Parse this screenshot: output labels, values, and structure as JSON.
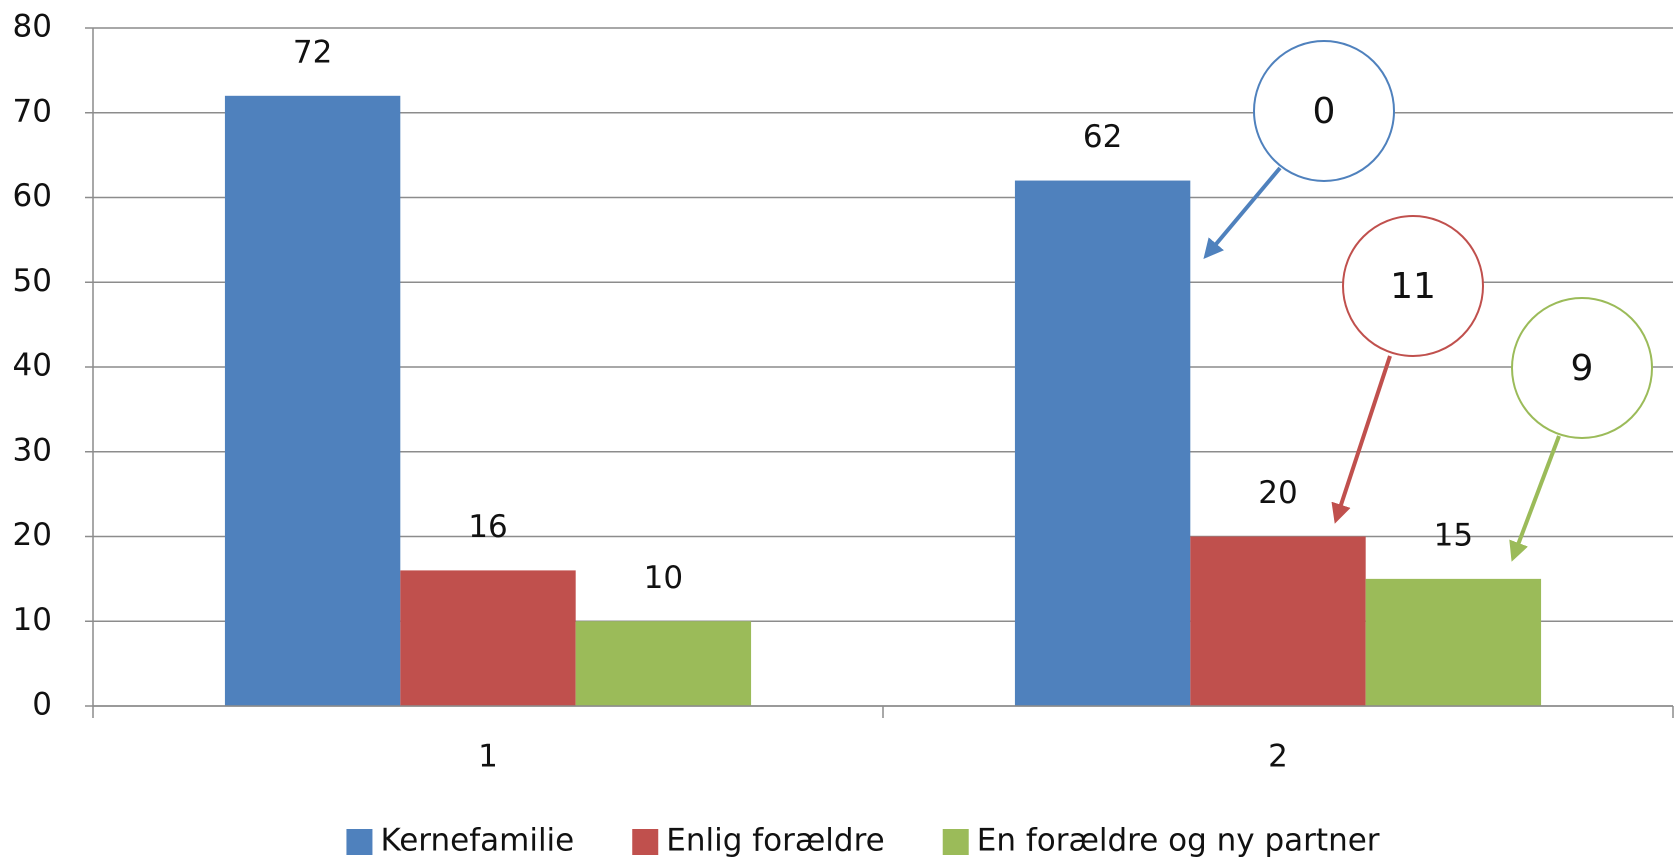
{
  "chart_data": {
    "type": "bar",
    "categories": [
      "1",
      "2"
    ],
    "series": [
      {
        "name": "Kernefamilie",
        "color": "#4f81bd",
        "values": [
          72,
          62
        ]
      },
      {
        "name": "Enlig forældre",
        "color": "#c0504d",
        "values": [
          16,
          20
        ]
      },
      {
        "name": "En forældre og ny partner",
        "color": "#9bbb59",
        "values": [
          10,
          15
        ]
      }
    ],
    "ylim": [
      0,
      80
    ],
    "yticks": [
      0,
      10,
      20,
      30,
      40,
      50,
      60,
      70,
      80
    ],
    "grid": true,
    "legend": "bottom",
    "annotations": [
      {
        "text": "0",
        "color": "#4f81bd"
      },
      {
        "text": "11",
        "color": "#c0504d"
      },
      {
        "text": "9",
        "color": "#9bbb59"
      }
    ]
  }
}
